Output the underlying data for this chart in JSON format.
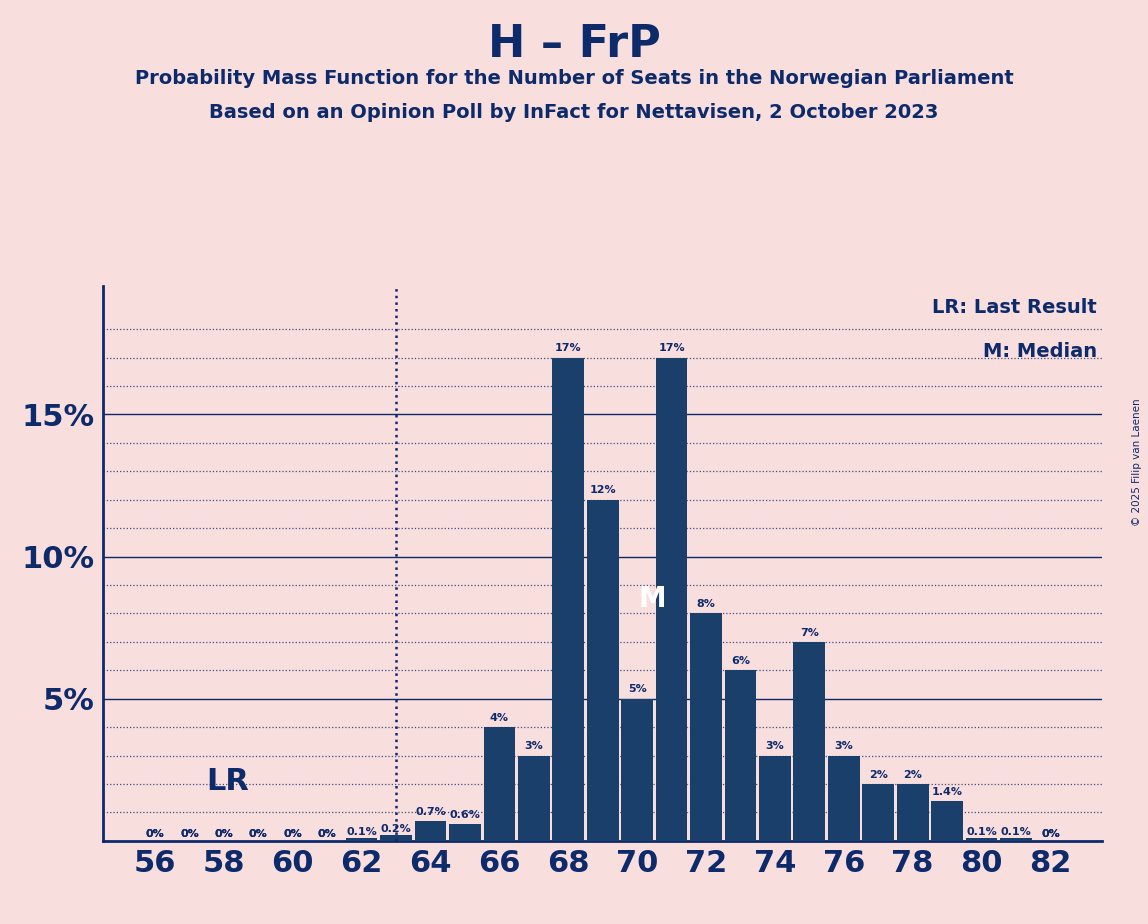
{
  "title": "H – FrP",
  "subtitle1": "Probability Mass Function for the Number of Seats in the Norwegian Parliament",
  "subtitle2": "Based on an Opinion Poll by InFact for Nettavisen, 2 October 2023",
  "copyright": "© 2025 Filip van Laenen",
  "prob_map": {
    "56": [
      0.0,
      "0%"
    ],
    "57": [
      0.0,
      "0%"
    ],
    "58": [
      0.0,
      "0%"
    ],
    "59": [
      0.0,
      "0%"
    ],
    "60": [
      0.0,
      "0%"
    ],
    "61": [
      0.0,
      "0%"
    ],
    "62": [
      0.001,
      "0.1%"
    ],
    "63": [
      0.002,
      "0.2%"
    ],
    "64": [
      0.007,
      "0.7%"
    ],
    "65": [
      0.006,
      "0.6%"
    ],
    "66": [
      0.04,
      "4%"
    ],
    "67": [
      0.03,
      "3%"
    ],
    "68": [
      0.17,
      "17%"
    ],
    "69": [
      0.12,
      "12%"
    ],
    "70": [
      0.05,
      "5%"
    ],
    "71": [
      0.17,
      "17%"
    ],
    "72": [
      0.08,
      "8%"
    ],
    "73": [
      0.06,
      "6%"
    ],
    "74": [
      0.03,
      "3%"
    ],
    "75": [
      0.07,
      "7%"
    ],
    "76": [
      0.03,
      "3%"
    ],
    "77": [
      0.02,
      "2%"
    ],
    "78": [
      0.02,
      "2%"
    ],
    "79": [
      0.014,
      "1.4%"
    ],
    "80": [
      0.001,
      "0.1%"
    ],
    "81": [
      0.001,
      "0.1%"
    ],
    "82": [
      0.0,
      "0%"
    ]
  },
  "bar_color": "#1b3f6b",
  "background_color": "#f9dede",
  "text_color": "#0d2a6b",
  "last_result_seat": 63,
  "median_seat": 71,
  "lr_label": "LR",
  "median_label": "M",
  "legend_lr": "LR: Last Result",
  "legend_m": "M: Median",
  "yticks": [
    0.05,
    0.1,
    0.15
  ],
  "ytick_labels": [
    "5%",
    "10%",
    "15%"
  ],
  "extra_dotted_yticks": [
    0.01,
    0.02,
    0.03,
    0.04,
    0.06,
    0.07,
    0.08,
    0.09,
    0.11,
    0.12,
    0.13,
    0.14,
    0.16,
    0.17,
    0.18
  ],
  "xlim": [
    54.5,
    83.5
  ],
  "ylim": [
    0,
    0.195
  ],
  "bar_width": 0.92
}
